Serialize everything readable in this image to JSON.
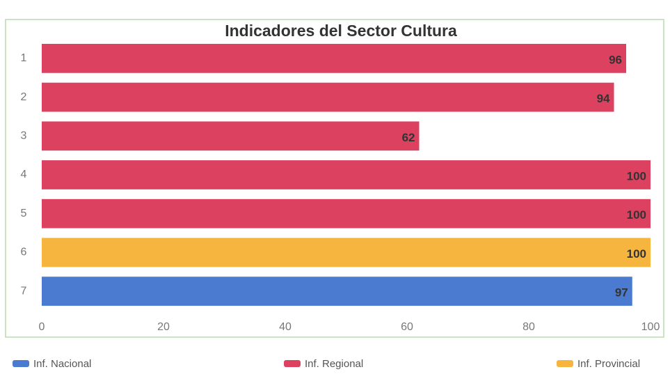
{
  "chart_data": {
    "type": "hbar",
    "title": "Indicadores del Sector Cultura",
    "categories": [
      "1",
      "2",
      "3",
      "4",
      "5",
      "6",
      "7"
    ],
    "series": [
      {
        "name": "Inf. Nacional",
        "color": "#4a7bd0",
        "values": [
          null,
          null,
          null,
          null,
          null,
          null,
          97
        ]
      },
      {
        "name": "Inf. Regional",
        "color": "#dc4160",
        "values": [
          96,
          94,
          62,
          100,
          100,
          null,
          null
        ]
      },
      {
        "name": "Inf. Provincial",
        "color": "#f6b53f",
        "values": [
          null,
          null,
          null,
          null,
          null,
          100,
          null
        ]
      }
    ],
    "xlim": [
      0,
      100
    ],
    "xticks": [
      0,
      20,
      40,
      60,
      80,
      100
    ],
    "grid": false,
    "legend": "bottom"
  }
}
